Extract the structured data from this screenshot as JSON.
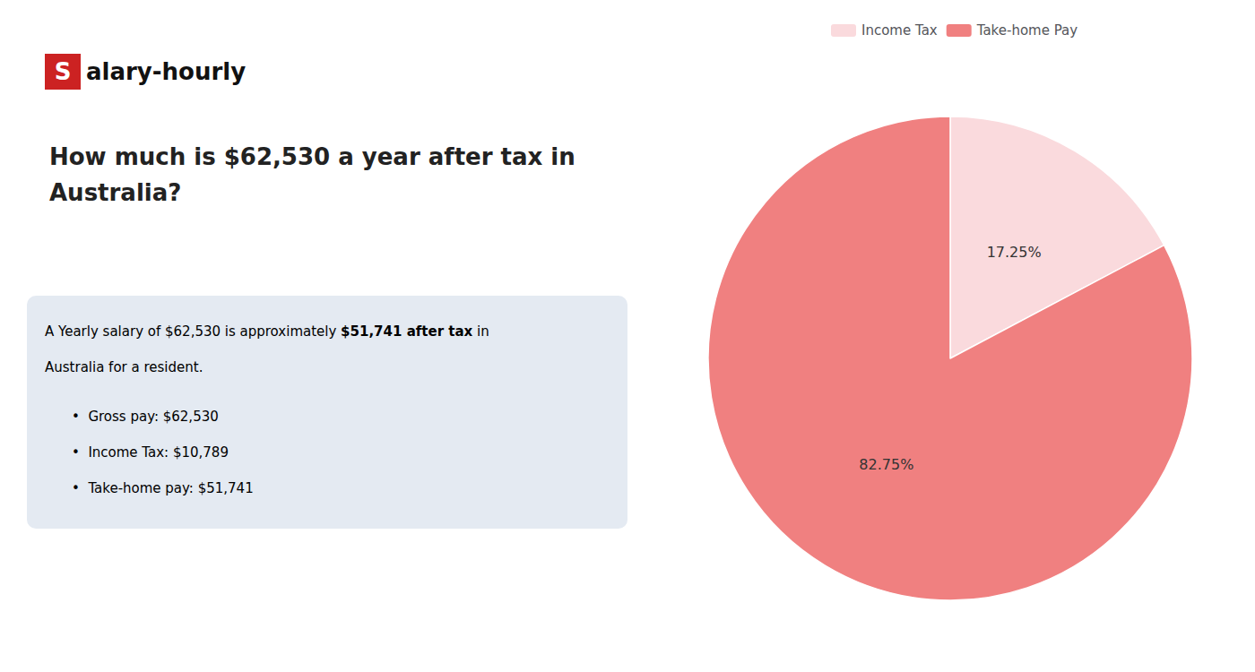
{
  "chart_data": {
    "type": "pie",
    "title": "How much is $62,530 a year after tax in Australia?",
    "categories": [
      "Income Tax",
      "Take-home Pay"
    ],
    "values": [
      17.25,
      82.75
    ],
    "value_labels": [
      "17.25%",
      "82.75%"
    ],
    "colors": [
      "#fadadd",
      "#f08080"
    ],
    "data_labels": true,
    "legend": "top",
    "annotations": [
      [
        "S",
        "alary-hourly"
      ],
      [
        "A Yearly salary of $62,530 is approximately ",
        {
          "text": "$51,741 after tax",
          "color": "#cc0000"
        },
        " in"
      ],
      [
        "Australia for a resident."
      ],
      [
        "•  Gross pay: $62,530"
      ],
      [
        "•  Income Tax: $10,789"
      ],
      [
        "•  Take-home pay: $51,741"
      ]
    ]
  }
}
